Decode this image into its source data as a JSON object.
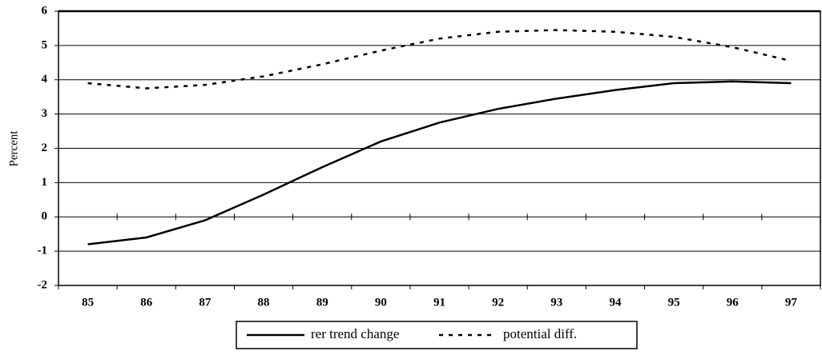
{
  "chart_data": {
    "type": "line",
    "y_label": "Percent",
    "categories": [
      "85",
      "86",
      "87",
      "88",
      "89",
      "90",
      "91",
      "92",
      "93",
      "94",
      "95",
      "96",
      "97"
    ],
    "series": [
      {
        "name": "rer trend change",
        "color": "#000000",
        "dash": "solid",
        "values": [
          -0.8,
          -0.6,
          -0.1,
          0.65,
          1.45,
          2.2,
          2.75,
          3.15,
          3.45,
          3.7,
          3.9,
          3.95,
          3.9
        ]
      },
      {
        "name": "potential diff.",
        "color": "#000000",
        "dash": "dotted",
        "values": [
          3.9,
          3.75,
          3.85,
          4.1,
          4.45,
          4.85,
          5.2,
          5.4,
          5.45,
          5.4,
          5.25,
          4.95,
          4.55
        ]
      }
    ],
    "ylim": [
      -2,
      6
    ],
    "yticks": [
      -2,
      -1,
      0,
      1,
      2,
      3,
      4,
      5,
      6
    ],
    "grid": true,
    "legend": "bottom"
  }
}
